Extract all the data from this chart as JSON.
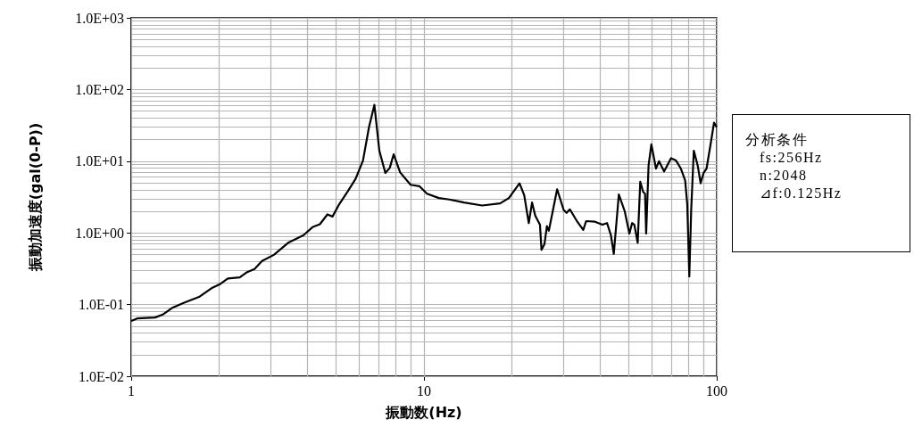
{
  "chart_data": {
    "type": "line",
    "xlabel": "振動数(Hz)",
    "ylabel": "振動加速度(gal(0-P))",
    "log": "xy",
    "grid": true,
    "marker": "none",
    "line_style": "solid",
    "xlim": [
      1,
      100
    ],
    "ylim": [
      0.01,
      1000
    ],
    "xticks": [
      1,
      {
        "value": 2,
        "label": null
      },
      {
        "value": 3,
        "label": null
      },
      {
        "value": 4,
        "label": null
      },
      {
        "value": 5,
        "label": null
      },
      {
        "value": 6,
        "label": null
      },
      {
        "value": 7,
        "label": null
      },
      {
        "value": 8,
        "label": null
      },
      {
        "value": 9,
        "label": null
      },
      10,
      {
        "value": 20,
        "label": null
      },
      {
        "value": 30,
        "label": null
      },
      {
        "value": 40,
        "label": null
      },
      {
        "value": 50,
        "label": null
      },
      {
        "value": 60,
        "label": null
      },
      {
        "value": 70,
        "label": null
      },
      {
        "value": 80,
        "label": null
      },
      {
        "value": 90,
        "label": null
      },
      100
    ],
    "yticks": [
      {
        "value": 0.01,
        "label": "1.0E-02"
      },
      {
        "value": 0.02,
        "label": null
      },
      {
        "value": 0.03,
        "label": null
      },
      {
        "value": 0.04,
        "label": null
      },
      {
        "value": 0.05,
        "label": null
      },
      {
        "value": 0.06,
        "label": null
      },
      {
        "value": 0.07,
        "label": null
      },
      {
        "value": 0.08,
        "label": null
      },
      {
        "value": 0.09,
        "label": null
      },
      {
        "value": 0.1,
        "label": "1.0E-01"
      },
      {
        "value": 0.2,
        "label": null
      },
      {
        "value": 0.3,
        "label": null
      },
      {
        "value": 0.4,
        "label": null
      },
      {
        "value": 0.5,
        "label": null
      },
      {
        "value": 0.6,
        "label": null
      },
      {
        "value": 0.7,
        "label": null
      },
      {
        "value": 0.8,
        "label": null
      },
      {
        "value": 0.9,
        "label": null
      },
      {
        "value": 1,
        "label": "1.0E+00"
      },
      {
        "value": 2,
        "label": null
      },
      {
        "value": 3,
        "label": null
      },
      {
        "value": 4,
        "label": null
      },
      {
        "value": 5,
        "label": null
      },
      {
        "value": 6,
        "label": null
      },
      {
        "value": 7,
        "label": null
      },
      {
        "value": 8,
        "label": null
      },
      {
        "value": 9,
        "label": null
      },
      {
        "value": 10,
        "label": "1.0E+01"
      },
      {
        "value": 20,
        "label": null
      },
      {
        "value": 30,
        "label": null
      },
      {
        "value": 40,
        "label": null
      },
      {
        "value": 50,
        "label": null
      },
      {
        "value": 60,
        "label": null
      },
      {
        "value": 70,
        "label": null
      },
      {
        "value": 80,
        "label": null
      },
      {
        "value": 90,
        "label": null
      },
      {
        "value": 100,
        "label": "1.0E+02"
      },
      {
        "value": 200,
        "label": null
      },
      {
        "value": 300,
        "label": null
      },
      {
        "value": 400,
        "label": null
      },
      {
        "value": 500,
        "label": null
      },
      {
        "value": 600,
        "label": null
      },
      {
        "value": 700,
        "label": null
      },
      {
        "value": 800,
        "label": null
      },
      {
        "value": 900,
        "label": null
      },
      {
        "value": 1000,
        "label": "1.0E+03"
      }
    ],
    "annotations": [
      "分析条件",
      "fs:256Hz",
      "n:2048",
      "⊿f:0.125Hz"
    ],
    "series": [
      {
        "color": "#000000",
        "x": [
          1,
          1.048,
          1.205,
          1.278,
          1.387,
          1.523,
          1.713,
          1.88,
          2.017,
          2.138,
          2.348,
          2.489,
          2.638,
          2.797,
          3.07,
          3.45,
          3.88,
          4.16,
          4.41,
          4.68,
          4.87,
          5.14,
          5.51,
          5.84,
          6.19,
          6.49,
          6.77,
          7.04,
          7.38,
          7.64,
          7.88,
          8.29,
          9.0,
          9.66,
          10.24,
          11.24,
          12.2,
          13.7,
          15.8,
          18.2,
          19.5,
          21.2,
          22.0,
          22.8,
          23.4,
          24.0,
          24.9,
          25.2,
          25.8,
          26.3,
          26.7,
          28.5,
          30.0,
          30.7,
          31.5,
          33.4,
          35.0,
          35.8,
          38.4,
          40.7,
          42.2,
          43.5,
          44.5,
          46.3,
          48.5,
          50.3,
          51.4,
          52.3,
          53.7,
          54.8,
          56.1,
          56.9,
          57.4,
          58.5,
          59.8,
          62.0,
          63.5,
          66.1,
          69.8,
          72.6,
          75.4,
          78.0,
          79.3,
          80.6,
          81.8,
          83.5,
          86.1,
          88.1,
          90.2,
          92.3,
          95.2,
          97.9,
          100
        ],
        "values": [
          0.059,
          0.064,
          0.066,
          0.072,
          0.091,
          0.107,
          0.129,
          0.169,
          0.194,
          0.231,
          0.24,
          0.284,
          0.313,
          0.404,
          0.493,
          0.735,
          0.931,
          1.2,
          1.32,
          1.81,
          1.69,
          2.53,
          3.88,
          5.68,
          10.2,
          29.9,
          61,
          14.0,
          6.86,
          8.05,
          12.5,
          6.98,
          4.69,
          4.47,
          3.52,
          3.06,
          2.92,
          2.65,
          2.41,
          2.58,
          3.06,
          4.92,
          3.36,
          1.37,
          2.65,
          1.73,
          1.3,
          0.58,
          0.7,
          1.24,
          1.07,
          4.06,
          2.09,
          1.9,
          2.13,
          1.43,
          1.1,
          1.46,
          1.43,
          1.3,
          1.37,
          0.93,
          0.51,
          3.43,
          2.0,
          0.98,
          1.37,
          1.3,
          0.73,
          5.16,
          3.7,
          3.52,
          0.98,
          8.7,
          17.2,
          7.9,
          10.0,
          7.2,
          11.0,
          10.2,
          7.9,
          5.4,
          2.53,
          0.247,
          2.09,
          14.0,
          8.7,
          4.92,
          6.86,
          7.9,
          16.9,
          34.5,
          29.9
        ]
      }
    ]
  }
}
